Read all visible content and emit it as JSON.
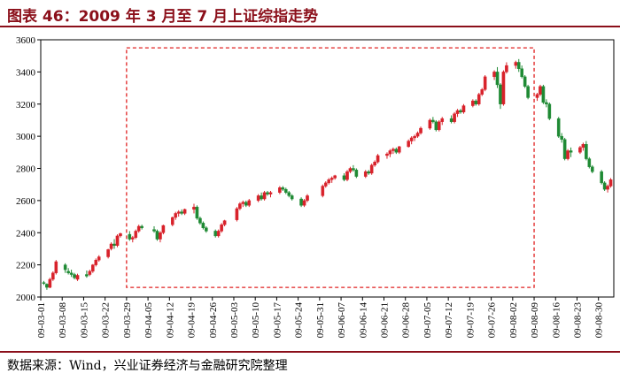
{
  "title": "图表 46：2009 年 3 月至 7 月上证综指走势",
  "source": "数据来源：Wind，兴业证券经济与金融研究院整理",
  "colors": {
    "up": "#d8222b",
    "down": "#1f8a34",
    "frame": "#000000",
    "highlight": "#e02020",
    "title": "#8b0f1a"
  },
  "chart_data": {
    "type": "candlestick",
    "ylim": [
      2000,
      3600
    ],
    "yticks": [
      2000,
      2200,
      2400,
      2600,
      2800,
      3000,
      3200,
      3400,
      3600
    ],
    "xticks": [
      "09-03-01",
      "09-03-08",
      "09-03-15",
      "09-03-22",
      "09-03-29",
      "09-04-05",
      "09-04-12",
      "09-04-19",
      "09-04-26",
      "09-05-03",
      "09-05-10",
      "09-05-17",
      "09-05-24",
      "09-05-31",
      "09-06-07",
      "09-06-14",
      "09-06-21",
      "09-06-28",
      "09-07-05",
      "09-07-12",
      "09-07-19",
      "09-07-26",
      "09-08-02",
      "09-08-09",
      "09-08-16",
      "09-08-23",
      "09-08-30"
    ],
    "x_range": [
      "2009-03-01",
      "2009-09-04"
    ],
    "highlight_range": {
      "x": [
        "2009-03-29",
        "2009-08-09"
      ],
      "y": [
        2060,
        3550
      ]
    },
    "ohlc": [
      [
        "2009-03-02",
        2090,
        2100,
        2075,
        2085
      ],
      [
        "2009-03-03",
        2080,
        2085,
        2045,
        2060
      ],
      [
        "2009-03-04",
        2060,
        2120,
        2055,
        2110
      ],
      [
        "2009-03-05",
        2110,
        2160,
        2100,
        2150
      ],
      [
        "2009-03-06",
        2150,
        2230,
        2140,
        2220
      ],
      [
        "2009-03-09",
        2200,
        2210,
        2150,
        2170
      ],
      [
        "2009-03-10",
        2160,
        2180,
        2140,
        2150
      ],
      [
        "2009-03-11",
        2150,
        2170,
        2125,
        2140
      ],
      [
        "2009-03-12",
        2140,
        2150,
        2110,
        2120
      ],
      [
        "2009-03-13",
        2110,
        2145,
        2100,
        2135
      ],
      [
        "2009-03-16",
        2140,
        2165,
        2120,
        2130
      ],
      [
        "2009-03-17",
        2140,
        2170,
        2130,
        2160
      ],
      [
        "2009-03-18",
        2160,
        2205,
        2150,
        2200
      ],
      [
        "2009-03-19",
        2200,
        2240,
        2190,
        2230
      ],
      [
        "2009-03-20",
        2230,
        2260,
        2220,
        2250
      ],
      [
        "2009-03-23",
        2250,
        2300,
        2240,
        2295
      ],
      [
        "2009-03-24",
        2300,
        2340,
        2290,
        2330
      ],
      [
        "2009-03-25",
        2330,
        2360,
        2300,
        2320
      ],
      [
        "2009-03-26",
        2320,
        2390,
        2310,
        2380
      ],
      [
        "2009-03-27",
        2380,
        2400,
        2370,
        2395
      ],
      [
        "2009-03-30",
        2390,
        2410,
        2350,
        2360
      ],
      [
        "2009-03-31",
        2360,
        2380,
        2340,
        2370
      ],
      [
        "2009-04-01",
        2370,
        2420,
        2360,
        2410
      ],
      [
        "2009-04-02",
        2410,
        2450,
        2400,
        2440
      ],
      [
        "2009-04-03",
        2440,
        2450,
        2420,
        2430
      ],
      [
        "2009-04-07",
        2420,
        2440,
        2400,
        2410
      ],
      [
        "2009-04-08",
        2410,
        2420,
        2350,
        2360
      ],
      [
        "2009-04-09",
        2360,
        2410,
        2340,
        2400
      ],
      [
        "2009-04-10",
        2400,
        2450,
        2390,
        2445
      ],
      [
        "2009-04-13",
        2450,
        2500,
        2440,
        2495
      ],
      [
        "2009-04-14",
        2495,
        2530,
        2480,
        2520
      ],
      [
        "2009-04-15",
        2520,
        2540,
        2500,
        2530
      ],
      [
        "2009-04-16",
        2530,
        2545,
        2510,
        2520
      ],
      [
        "2009-04-17",
        2520,
        2550,
        2510,
        2545
      ],
      [
        "2009-04-20",
        2545,
        2580,
        2520,
        2560
      ],
      [
        "2009-04-21",
        2560,
        2570,
        2480,
        2490
      ],
      [
        "2009-04-22",
        2490,
        2500,
        2450,
        2460
      ],
      [
        "2009-04-23",
        2460,
        2470,
        2420,
        2430
      ],
      [
        "2009-04-24",
        2430,
        2440,
        2400,
        2410
      ],
      [
        "2009-04-27",
        2410,
        2420,
        2370,
        2380
      ],
      [
        "2009-04-28",
        2380,
        2420,
        2370,
        2410
      ],
      [
        "2009-04-29",
        2410,
        2460,
        2400,
        2450
      ],
      [
        "2009-04-30",
        2450,
        2480,
        2440,
        2475
      ],
      [
        "2009-05-04",
        2480,
        2560,
        2470,
        2550
      ],
      [
        "2009-05-05",
        2550,
        2590,
        2540,
        2580
      ],
      [
        "2009-05-06",
        2580,
        2600,
        2560,
        2590
      ],
      [
        "2009-05-07",
        2590,
        2600,
        2560,
        2570
      ],
      [
        "2009-05-08",
        2570,
        2610,
        2560,
        2600
      ],
      [
        "2009-05-11",
        2600,
        2640,
        2590,
        2630
      ],
      [
        "2009-05-12",
        2630,
        2650,
        2600,
        2610
      ],
      [
        "2009-05-13",
        2610,
        2660,
        2600,
        2650
      ],
      [
        "2009-05-14",
        2650,
        2660,
        2630,
        2640
      ],
      [
        "2009-05-15",
        2640,
        2660,
        2620,
        2650
      ],
      [
        "2009-05-18",
        2650,
        2690,
        2640,
        2680
      ],
      [
        "2009-05-19",
        2680,
        2690,
        2660,
        2670
      ],
      [
        "2009-05-20",
        2670,
        2680,
        2640,
        2650
      ],
      [
        "2009-05-21",
        2650,
        2660,
        2620,
        2630
      ],
      [
        "2009-05-22",
        2630,
        2640,
        2600,
        2610
      ],
      [
        "2009-05-25",
        2610,
        2620,
        2560,
        2570
      ],
      [
        "2009-05-26",
        2570,
        2610,
        2560,
        2600
      ],
      [
        "2009-05-27",
        2600,
        2640,
        2590,
        2630
      ],
      [
        "2009-06-01",
        2630,
        2700,
        2620,
        2690
      ],
      [
        "2009-06-02",
        2690,
        2720,
        2680,
        2710
      ],
      [
        "2009-06-03",
        2710,
        2740,
        2700,
        2730
      ],
      [
        "2009-06-04",
        2730,
        2750,
        2710,
        2740
      ],
      [
        "2009-06-05",
        2740,
        2760,
        2730,
        2755
      ],
      [
        "2009-06-08",
        2755,
        2770,
        2720,
        2730
      ],
      [
        "2009-06-09",
        2730,
        2790,
        2720,
        2780
      ],
      [
        "2009-06-10",
        2780,
        2810,
        2770,
        2800
      ],
      [
        "2009-06-11",
        2800,
        2820,
        2780,
        2790
      ],
      [
        "2009-06-12",
        2790,
        2800,
        2740,
        2750
      ],
      [
        "2009-06-15",
        2750,
        2790,
        2740,
        2780
      ],
      [
        "2009-06-16",
        2780,
        2790,
        2760,
        2770
      ],
      [
        "2009-06-17",
        2770,
        2830,
        2760,
        2820
      ],
      [
        "2009-06-18",
        2820,
        2850,
        2810,
        2840
      ],
      [
        "2009-06-19",
        2840,
        2890,
        2830,
        2880
      ],
      [
        "2009-06-22",
        2880,
        2900,
        2860,
        2890
      ],
      [
        "2009-06-23",
        2890,
        2920,
        2870,
        2910
      ],
      [
        "2009-06-24",
        2910,
        2930,
        2890,
        2920
      ],
      [
        "2009-06-25",
        2920,
        2930,
        2890,
        2900
      ],
      [
        "2009-06-26",
        2900,
        2940,
        2890,
        2935
      ],
      [
        "2009-06-29",
        2935,
        2980,
        2930,
        2970
      ],
      [
        "2009-06-30",
        2970,
        3000,
        2950,
        2990
      ],
      [
        "2009-07-01",
        2990,
        3010,
        2970,
        3000
      ],
      [
        "2009-07-02",
        3000,
        3030,
        2990,
        3020
      ],
      [
        "2009-07-03",
        3020,
        3060,
        3010,
        3050
      ],
      [
        "2009-07-06",
        3050,
        3110,
        3040,
        3100
      ],
      [
        "2009-07-07",
        3100,
        3120,
        3080,
        3090
      ],
      [
        "2009-07-08",
        3090,
        3100,
        3030,
        3040
      ],
      [
        "2009-07-09",
        3040,
        3100,
        3030,
        3090
      ],
      [
        "2009-07-10",
        3090,
        3120,
        3070,
        3110
      ],
      [
        "2009-07-13",
        3110,
        3130,
        3080,
        3090
      ],
      [
        "2009-07-14",
        3090,
        3150,
        3080,
        3140
      ],
      [
        "2009-07-15",
        3140,
        3170,
        3120,
        3160
      ],
      [
        "2009-07-16",
        3160,
        3170,
        3140,
        3150
      ],
      [
        "2009-07-17",
        3150,
        3200,
        3140,
        3190
      ],
      [
        "2009-07-20",
        3190,
        3230,
        3180,
        3220
      ],
      [
        "2009-07-21",
        3220,
        3230,
        3190,
        3200
      ],
      [
        "2009-07-22",
        3200,
        3270,
        3190,
        3260
      ],
      [
        "2009-07-23",
        3260,
        3300,
        3250,
        3290
      ],
      [
        "2009-07-24",
        3290,
        3380,
        3280,
        3370
      ],
      [
        "2009-07-27",
        3370,
        3410,
        3350,
        3400
      ],
      [
        "2009-07-28",
        3400,
        3430,
        3300,
        3320
      ],
      [
        "2009-07-29",
        3320,
        3330,
        3170,
        3200
      ],
      [
        "2009-07-30",
        3200,
        3410,
        3190,
        3400
      ],
      [
        "2009-07-31",
        3400,
        3460,
        3390,
        3440
      ],
      [
        "2009-08-03",
        3440,
        3470,
        3420,
        3460
      ],
      [
        "2009-08-04",
        3460,
        3480,
        3400,
        3420
      ],
      [
        "2009-08-05",
        3420,
        3440,
        3360,
        3370
      ],
      [
        "2009-08-06",
        3370,
        3380,
        3300,
        3310
      ],
      [
        "2009-08-07",
        3310,
        3320,
        3230,
        3240
      ],
      [
        "2009-08-10",
        3240,
        3270,
        3220,
        3260
      ],
      [
        "2009-08-11",
        3260,
        3320,
        3250,
        3310
      ],
      [
        "2009-08-12",
        3310,
        3320,
        3200,
        3210
      ],
      [
        "2009-08-13",
        3210,
        3230,
        3180,
        3200
      ],
      [
        "2009-08-14",
        3200,
        3210,
        3100,
        3110
      ],
      [
        "2009-08-17",
        3110,
        3120,
        2990,
        3000
      ],
      [
        "2009-08-18",
        3000,
        3020,
        2960,
        2980
      ],
      [
        "2009-08-19",
        2980,
        2990,
        2850,
        2860
      ],
      [
        "2009-08-20",
        2860,
        2920,
        2850,
        2910
      ],
      [
        "2009-08-21",
        2910,
        2930,
        2870,
        2900
      ],
      [
        "2009-08-24",
        2900,
        2940,
        2890,
        2930
      ],
      [
        "2009-08-25",
        2930,
        2960,
        2910,
        2950
      ],
      [
        "2009-08-26",
        2950,
        2970,
        2850,
        2860
      ],
      [
        "2009-08-27",
        2860,
        2870,
        2800,
        2810
      ],
      [
        "2009-08-28",
        2810,
        2820,
        2770,
        2780
      ],
      [
        "2009-08-31",
        2780,
        2790,
        2700,
        2710
      ],
      [
        "2009-09-01",
        2710,
        2720,
        2660,
        2670
      ],
      [
        "2009-09-02",
        2670,
        2700,
        2650,
        2690
      ],
      [
        "2009-09-03",
        2690,
        2740,
        2680,
        2730
      ]
    ]
  }
}
